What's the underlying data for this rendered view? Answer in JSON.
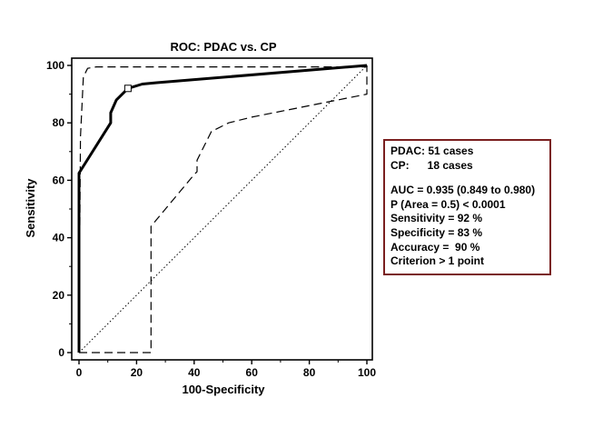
{
  "chart_data": {
    "type": "line",
    "title": "ROC: PDAC vs. CP",
    "xlabel": "100-Specificity",
    "ylabel": "Sensitivity",
    "xlim": [
      0,
      100
    ],
    "ylim": [
      0,
      100
    ],
    "xticks": [
      "0",
      "20",
      "40",
      "60",
      "80",
      "100"
    ],
    "yticks": [
      "0",
      "20",
      "40",
      "60",
      "80",
      "100"
    ],
    "grid": false,
    "series": [
      {
        "role": "roc-curve",
        "style": "solid-thick",
        "color": "#000000",
        "x": [
          0,
          0,
          11,
          11,
          13,
          17,
          22,
          27,
          100
        ],
        "y": [
          0,
          62.5,
          80,
          83.5,
          88,
          92,
          93.5,
          94,
          100
        ]
      },
      {
        "role": "upper-confidence-bound",
        "style": "dashed",
        "color": "#000000",
        "x": [
          0,
          0.5,
          1.5,
          3,
          6,
          100,
          100
        ],
        "y": [
          0,
          75,
          96,
          99,
          99.5,
          99.5,
          100
        ]
      },
      {
        "role": "lower-confidence-bound",
        "style": "dashed",
        "color": "#000000",
        "x": [
          0,
          25,
          25,
          40,
          41,
          41,
          46,
          52,
          60,
          100,
          100
        ],
        "y": [
          0,
          0,
          44,
          62,
          63,
          67,
          77,
          80,
          82,
          90,
          100
        ]
      },
      {
        "role": "reference-diagonal",
        "style": "dotted",
        "color": "#000000",
        "x": [
          0,
          100
        ],
        "y": [
          0,
          100
        ]
      }
    ],
    "operating_point": {
      "x": 17,
      "y": 92
    }
  },
  "stats": {
    "line1": "PDAC: 51 cases",
    "line2": "CP:      18 cases",
    "line3": "AUC = 0.935 (0.849 to 0.980)",
    "line4": "P (Area = 0.5) < 0.0001",
    "line5": "Sensitivity = 92 %",
    "line6": "Specificity = 83 %",
    "line7": "Accuracy =  90 %",
    "line8": "Criterion > 1 point",
    "border_color": "#7a1f1f"
  }
}
